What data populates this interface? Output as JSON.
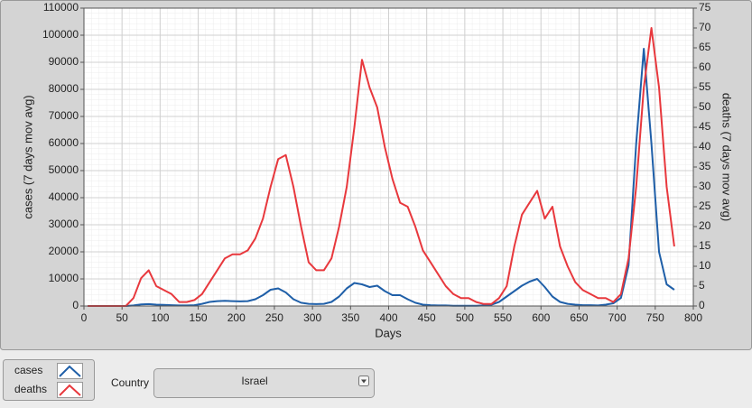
{
  "chart_data": {
    "type": "line",
    "x_label": "Days",
    "y_label": "cases  (7 days mov avg)",
    "y2_label": "deaths  (7 days mov avg)",
    "x": [
      5,
      15,
      25,
      35,
      45,
      55,
      65,
      75,
      85,
      95,
      105,
      115,
      125,
      135,
      145,
      155,
      165,
      175,
      185,
      195,
      205,
      215,
      225,
      235,
      245,
      255,
      265,
      275,
      285,
      295,
      305,
      315,
      325,
      335,
      345,
      355,
      365,
      375,
      385,
      395,
      405,
      415,
      425,
      435,
      445,
      455,
      465,
      475,
      485,
      495,
      505,
      515,
      525,
      535,
      545,
      555,
      565,
      575,
      585,
      595,
      605,
      615,
      625,
      635,
      645,
      655,
      665,
      675,
      685,
      695,
      705,
      715,
      725,
      735,
      745,
      755,
      765,
      775
    ],
    "series": [
      {
        "name": "cases",
        "color": "#1f5fa8",
        "values": [
          0,
          0,
          0,
          0,
          0,
          0,
          200,
          600,
          700,
          500,
          400,
          300,
          200,
          200,
          300,
          800,
          1500,
          1800,
          1900,
          1800,
          1700,
          1800,
          2500,
          4000,
          6000,
          6500,
          5000,
          2500,
          1200,
          800,
          700,
          800,
          1500,
          3500,
          6500,
          8500,
          8000,
          7000,
          7500,
          5500,
          4000,
          4000,
          2500,
          1200,
          500,
          300,
          200,
          200,
          100,
          100,
          100,
          100,
          200,
          500,
          1500,
          3500,
          5500,
          7500,
          9000,
          10000,
          7000,
          3500,
          1500,
          800,
          500,
          300,
          300,
          200,
          500,
          1000,
          3000,
          15000,
          60000,
          95000,
          60000,
          20000,
          8000,
          6000
        ]
      },
      {
        "name": "deaths",
        "color": "#e8383d",
        "axis": "y2",
        "values": [
          0,
          0,
          0,
          0,
          0,
          0,
          2,
          7,
          9,
          5,
          4,
          3,
          1,
          1,
          1.5,
          3,
          6,
          9,
          12,
          13,
          13,
          14,
          17,
          22,
          30,
          37,
          38,
          30,
          20,
          11,
          9,
          9,
          12,
          20,
          30,
          45,
          62,
          55,
          50,
          40,
          32,
          26,
          25,
          20,
          14,
          11,
          8,
          5,
          3,
          2,
          2,
          1,
          0.5,
          0.5,
          2,
          5,
          15,
          23,
          26,
          29,
          22,
          25,
          15,
          10,
          6,
          4,
          3,
          2,
          2,
          1,
          3,
          12,
          30,
          55,
          70,
          55,
          30,
          15
        ]
      }
    ],
    "xlim": [
      0,
      800
    ],
    "xticks": [
      0,
      50,
      100,
      150,
      200,
      250,
      300,
      350,
      400,
      450,
      500,
      550,
      600,
      650,
      700,
      750,
      800
    ],
    "ylim": [
      0,
      110000
    ],
    "yticks": [
      0,
      10000,
      20000,
      30000,
      40000,
      50000,
      60000,
      70000,
      80000,
      90000,
      100000,
      110000
    ],
    "y2lim": [
      0,
      75
    ],
    "y2ticks": [
      0,
      5,
      10,
      15,
      20,
      25,
      30,
      35,
      40,
      45,
      50,
      55,
      60,
      65,
      70,
      75
    ],
    "grid": true
  },
  "controls": {
    "country_label": "Country",
    "country": "Israel"
  }
}
